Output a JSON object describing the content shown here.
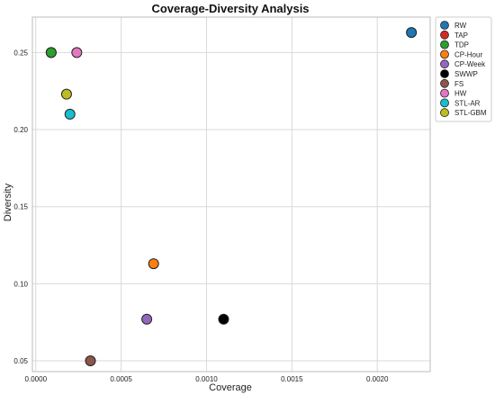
{
  "chart_data": {
    "type": "scatter",
    "title": "Coverage-Diversity Analysis",
    "xlabel": "Coverage",
    "ylabel": "Diversity",
    "xlim": [
      -2e-05,
      0.00231
    ],
    "ylim": [
      0.043,
      0.273
    ],
    "x_ticks": [
      0.0,
      0.0005,
      0.001,
      0.0015,
      0.002
    ],
    "x_tick_labels": [
      "0.0000",
      "0.0005",
      "0.0010",
      "0.0015",
      "0.0020"
    ],
    "y_ticks": [
      0.05,
      0.1,
      0.15,
      0.2,
      0.25
    ],
    "y_tick_labels": [
      "0.05",
      "0.10",
      "0.15",
      "0.20",
      "0.25"
    ],
    "grid": true,
    "legend_position": "outside-top-right",
    "series": [
      {
        "name": "RW",
        "color": "#1f77b4",
        "points": [
          [
            0.0022,
            0.263
          ]
        ]
      },
      {
        "name": "TAP",
        "color": "#d62728",
        "points": [
          [
            9e-05,
            0.25
          ]
        ]
      },
      {
        "name": "TDP",
        "color": "#2ca02c",
        "points": [
          [
            9e-05,
            0.25
          ]
        ]
      },
      {
        "name": "CP-Hour",
        "color": "#ff7f0e",
        "points": [
          [
            0.00069,
            0.113
          ]
        ]
      },
      {
        "name": "CP-Week",
        "color": "#9467bd",
        "points": [
          [
            0.00065,
            0.077
          ]
        ]
      },
      {
        "name": "SWWP",
        "color": "#000000",
        "points": [
          [
            0.0011,
            0.077
          ]
        ]
      },
      {
        "name": "FS",
        "color": "#8c564b",
        "points": [
          [
            0.00032,
            0.05
          ]
        ]
      },
      {
        "name": "HW",
        "color": "#e377c2",
        "points": [
          [
            0.00024,
            0.25
          ]
        ]
      },
      {
        "name": "STL-AR",
        "color": "#17becf",
        "points": [
          [
            0.0002,
            0.21
          ]
        ]
      },
      {
        "name": "STL-GBM",
        "color": "#bcbd22",
        "points": [
          [
            0.00018,
            0.223
          ]
        ]
      }
    ]
  }
}
